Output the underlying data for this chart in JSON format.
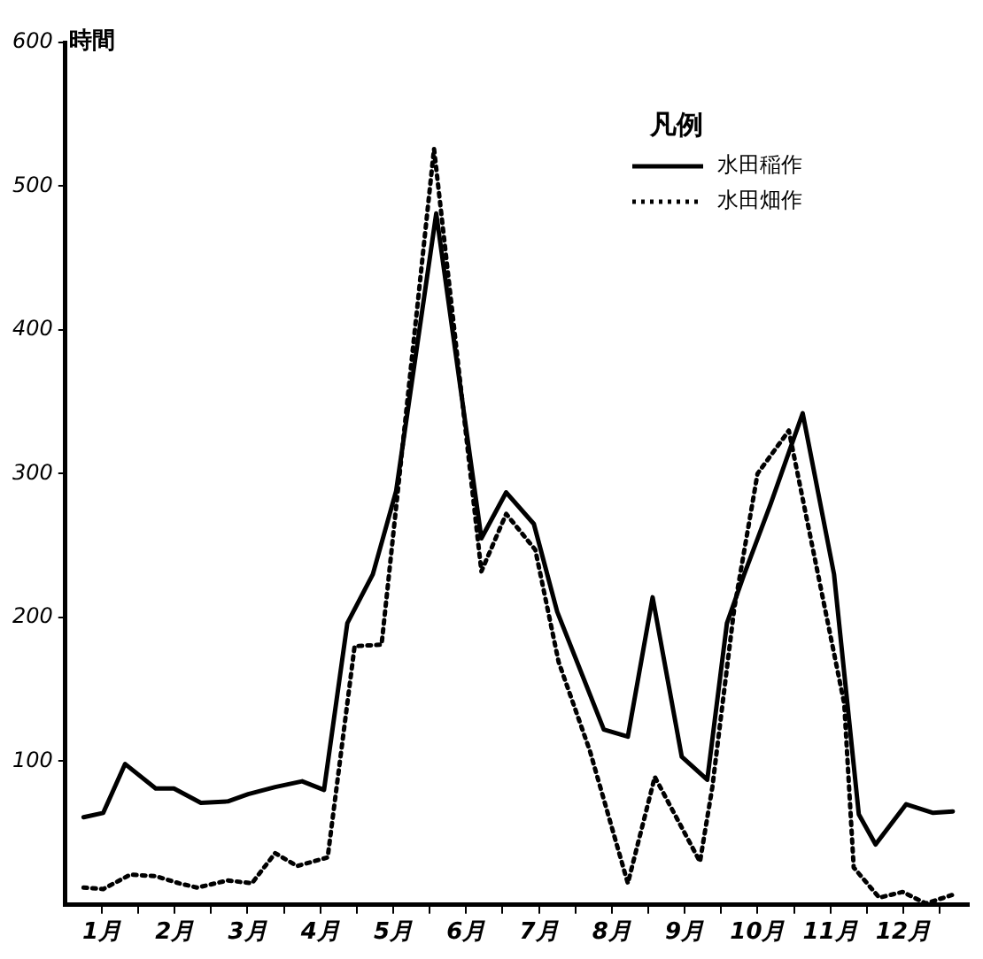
{
  "chart_data": {
    "type": "line",
    "ylabel": "時間",
    "legend_title": "凡例",
    "legend": "top right",
    "grid": false,
    "marker": "none",
    "xlim": [
      1,
      13.4
    ],
    "xticks": [
      {
        "value": 1.5,
        "label": "1月"
      },
      {
        "value": 2.5,
        "label": "2月"
      },
      {
        "value": 3.5,
        "label": "3月"
      },
      {
        "value": 4.5,
        "label": "4月"
      },
      {
        "value": 5.5,
        "label": "5月"
      },
      {
        "value": 6.5,
        "label": "6月"
      },
      {
        "value": 7.5,
        "label": "7月"
      },
      {
        "value": 8.5,
        "label": "8月"
      },
      {
        "value": 9.5,
        "label": "9月"
      },
      {
        "value": 10.5,
        "label": "10月"
      },
      {
        "value": 11.5,
        "label": "11月"
      },
      {
        "value": 12.5,
        "label": "12月"
      },
      {
        "value": 2,
        "label": null
      },
      {
        "value": 3,
        "label": null
      },
      {
        "value": 4,
        "label": null
      },
      {
        "value": 5,
        "label": null
      },
      {
        "value": 6,
        "label": null
      },
      {
        "value": 7,
        "label": null
      },
      {
        "value": 8,
        "label": null
      },
      {
        "value": 9,
        "label": null
      },
      {
        "value": 10,
        "label": null
      },
      {
        "value": 11,
        "label": null
      },
      {
        "value": 12,
        "label": null
      },
      {
        "value": 13,
        "label": null
      }
    ],
    "ylim": [
      0,
      600
    ],
    "yticks": [
      100,
      200,
      300,
      400,
      500,
      600
    ],
    "series": [
      {
        "name": "水田稲作",
        "color": "#000000",
        "line_style": "solid",
        "x": [
          1.25,
          1.52,
          1.82,
          2.24,
          2.49,
          2.86,
          3.23,
          3.51,
          3.88,
          4.25,
          4.55,
          4.87,
          5.22,
          5.54,
          6.09,
          6.71,
          7.05,
          7.43,
          7.75,
          8.39,
          8.72,
          9.06,
          9.46,
          9.81,
          10.08,
          10.31,
          10.68,
          11.12,
          11.55,
          11.89,
          12.12,
          12.54,
          12.91,
          13.18
        ],
        "values": [
          61,
          64,
          98,
          81,
          81,
          71,
          72,
          77,
          82,
          86,
          80,
          196,
          230,
          288,
          481,
          255,
          287,
          265,
          204,
          122,
          117,
          214,
          103,
          87,
          196,
          229,
          279,
          342,
          230,
          63,
          42,
          70,
          64,
          65
        ]
      },
      {
        "name": "水田畑作",
        "color": "#000000",
        "line_style": "dotted",
        "x": [
          1.25,
          1.52,
          1.89,
          2.24,
          2.56,
          2.81,
          3.23,
          3.56,
          3.88,
          4.18,
          4.6,
          4.97,
          5.34,
          6.06,
          6.71,
          7.05,
          7.45,
          7.77,
          8.2,
          8.72,
          9.09,
          9.71,
          9.88,
          10.18,
          10.5,
          10.93,
          11.69,
          11.82,
          12.17,
          12.49,
          12.81,
          13.18
        ],
        "values": [
          12,
          11,
          21,
          20,
          15,
          12,
          17,
          15,
          36,
          27,
          33,
          180,
          181,
          526,
          232,
          272,
          247,
          169,
          107,
          15,
          89,
          30,
          82,
          206,
          300,
          330,
          140,
          26,
          5,
          9,
          1,
          7
        ]
      }
    ]
  }
}
